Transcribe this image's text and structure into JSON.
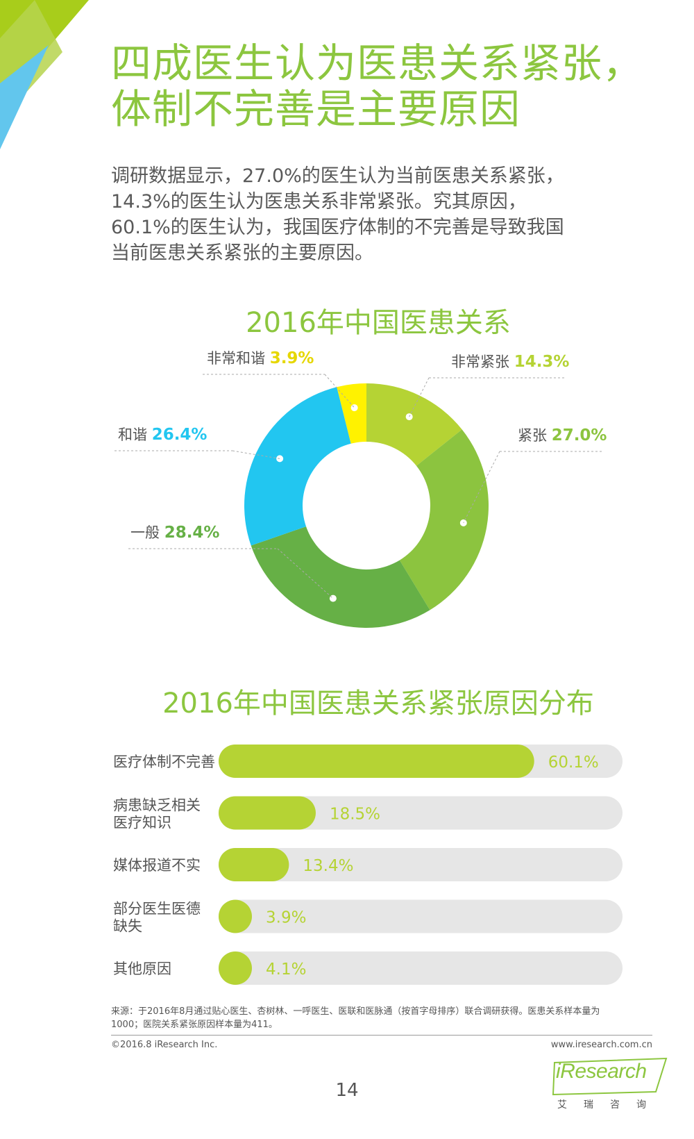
{
  "colors": {
    "accent_green": "#8cc63f",
    "lime": "#b5d334",
    "yellow": "#fff200",
    "cyan": "#22c6f0",
    "mid_green": "#8cc43f",
    "dark_green": "#66b046",
    "track_gray": "#e6e6e6",
    "corner_light_green": "#b6d34d",
    "corner_blue": "#62c6ed"
  },
  "headline": {
    "line1": "四成医生认为医患关系紧张，",
    "line2": "体制不完善是主要原因"
  },
  "intro": {
    "lines": [
      "调研数据显示，27.0%的医生认为当前医患关系紧张，",
      "14.3%的医生认为医患关系非常紧张。究其原因，",
      "60.1%的医生认为，我国医疗体制的不完善是导致我国",
      "当前医患关系紧张的主要原因。"
    ]
  },
  "chart_data": [
    {
      "type": "pie",
      "variant": "donut",
      "title": "2016年中国医患关系",
      "categories": [
        "非常紧张",
        "紧张",
        "一般",
        "和谐",
        "非常和谐"
      ],
      "values": [
        14.3,
        27.0,
        28.4,
        26.4,
        3.9
      ],
      "value_labels": [
        "14.3%",
        "27.0%",
        "28.4%",
        "26.4%",
        "3.9%"
      ],
      "colors": [
        "#b5d334",
        "#8cc43f",
        "#66b046",
        "#22c6f0",
        "#fff200"
      ],
      "label_colors": [
        "#b5d334",
        "#8cc43f",
        "#66b046",
        "#22c6f0",
        "#e6d700"
      ],
      "legend": "none"
    },
    {
      "type": "bar",
      "orientation": "horizontal",
      "title": "2016年中国医患关系紧张原因分布",
      "categories": [
        [
          "医疗体制不完善"
        ],
        [
          "病患缺乏相关",
          "医疗知识"
        ],
        [
          "媒体报道不实"
        ],
        [
          "部分医生医德",
          "缺失"
        ],
        [
          "其他原因"
        ]
      ],
      "values": [
        60.1,
        18.5,
        13.4,
        3.9,
        4.1
      ],
      "value_labels": [
        "60.1%",
        "18.5%",
        "13.4%",
        "3.9%",
        "4.1%"
      ],
      "xlim": [
        0,
        100
      ],
      "bar_color": "#b5d334",
      "track_color": "#e6e6e6",
      "value_label_color": "#b5d334"
    }
  ],
  "footer": {
    "source_line1": "来源：于2016年8月通过贴心医生、杏树林、一呼医生、医联和医脉通（按首字母排序）联合调研获得。医患关系样本量为",
    "source_line2": "1000；医院关系紧张原因样本量为411。",
    "copyright": "©2016.8 iResearch Inc.",
    "website": "www.iresearch.com.cn",
    "page_number": "14"
  },
  "logo": {
    "brand": "iResearch",
    "sub": "艾瑞咨询"
  }
}
